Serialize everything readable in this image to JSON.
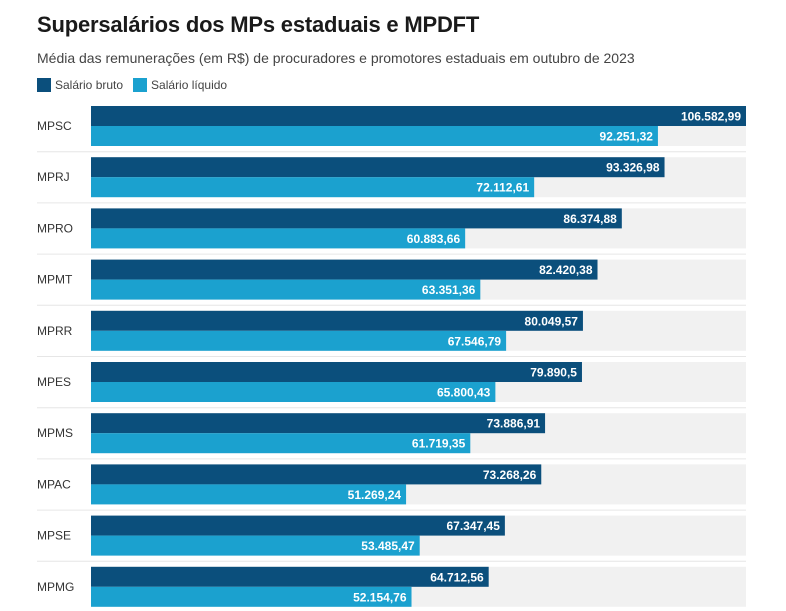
{
  "chart_data": {
    "type": "bar",
    "orientation": "horizontal",
    "title": "Supersalários dos MPs estaduais e MPDFT",
    "subtitle": "Média das remunerações (em R$) de procuradores e promotores estaduais em outubro de 2023",
    "xlabel": "",
    "ylabel": "",
    "xlim": [
      0,
      106582.99
    ],
    "grid": false,
    "legend_position": "top-left",
    "categories": [
      "MPSC",
      "MPRJ",
      "MPRO",
      "MPMT",
      "MPRR",
      "MPES",
      "MPMS",
      "MPAC",
      "MPSE",
      "MPMG"
    ],
    "series": [
      {
        "name": "Salário bruto",
        "color": "#0b4f7c",
        "values": [
          106582.99,
          93326.98,
          86374.88,
          82420.38,
          80049.57,
          79890.5,
          73886.91,
          73268.26,
          67347.45,
          64712.56
        ],
        "labels": [
          "106.582,99",
          "93.326,98",
          "86.374,88",
          "82.420,38",
          "80.049,57",
          "79.890,5",
          "73.886,91",
          "73.268,26",
          "67.347,45",
          "64.712,56"
        ]
      },
      {
        "name": "Salário líquido",
        "color": "#1ba1cf",
        "values": [
          92251.32,
          72112.61,
          60883.66,
          63351.36,
          67546.79,
          65800.43,
          61719.35,
          51269.24,
          53485.47,
          52154.76
        ],
        "labels": [
          "92.251,32",
          "72.112,61",
          "60.883,66",
          "63.351,36",
          "67.546,79",
          "65.800,43",
          "61.719,35",
          "51.269,24",
          "53.485,47",
          "52.154,76"
        ]
      }
    ],
    "track_color": "#f1f1f1",
    "separator_color": "#e6e6e6"
  }
}
